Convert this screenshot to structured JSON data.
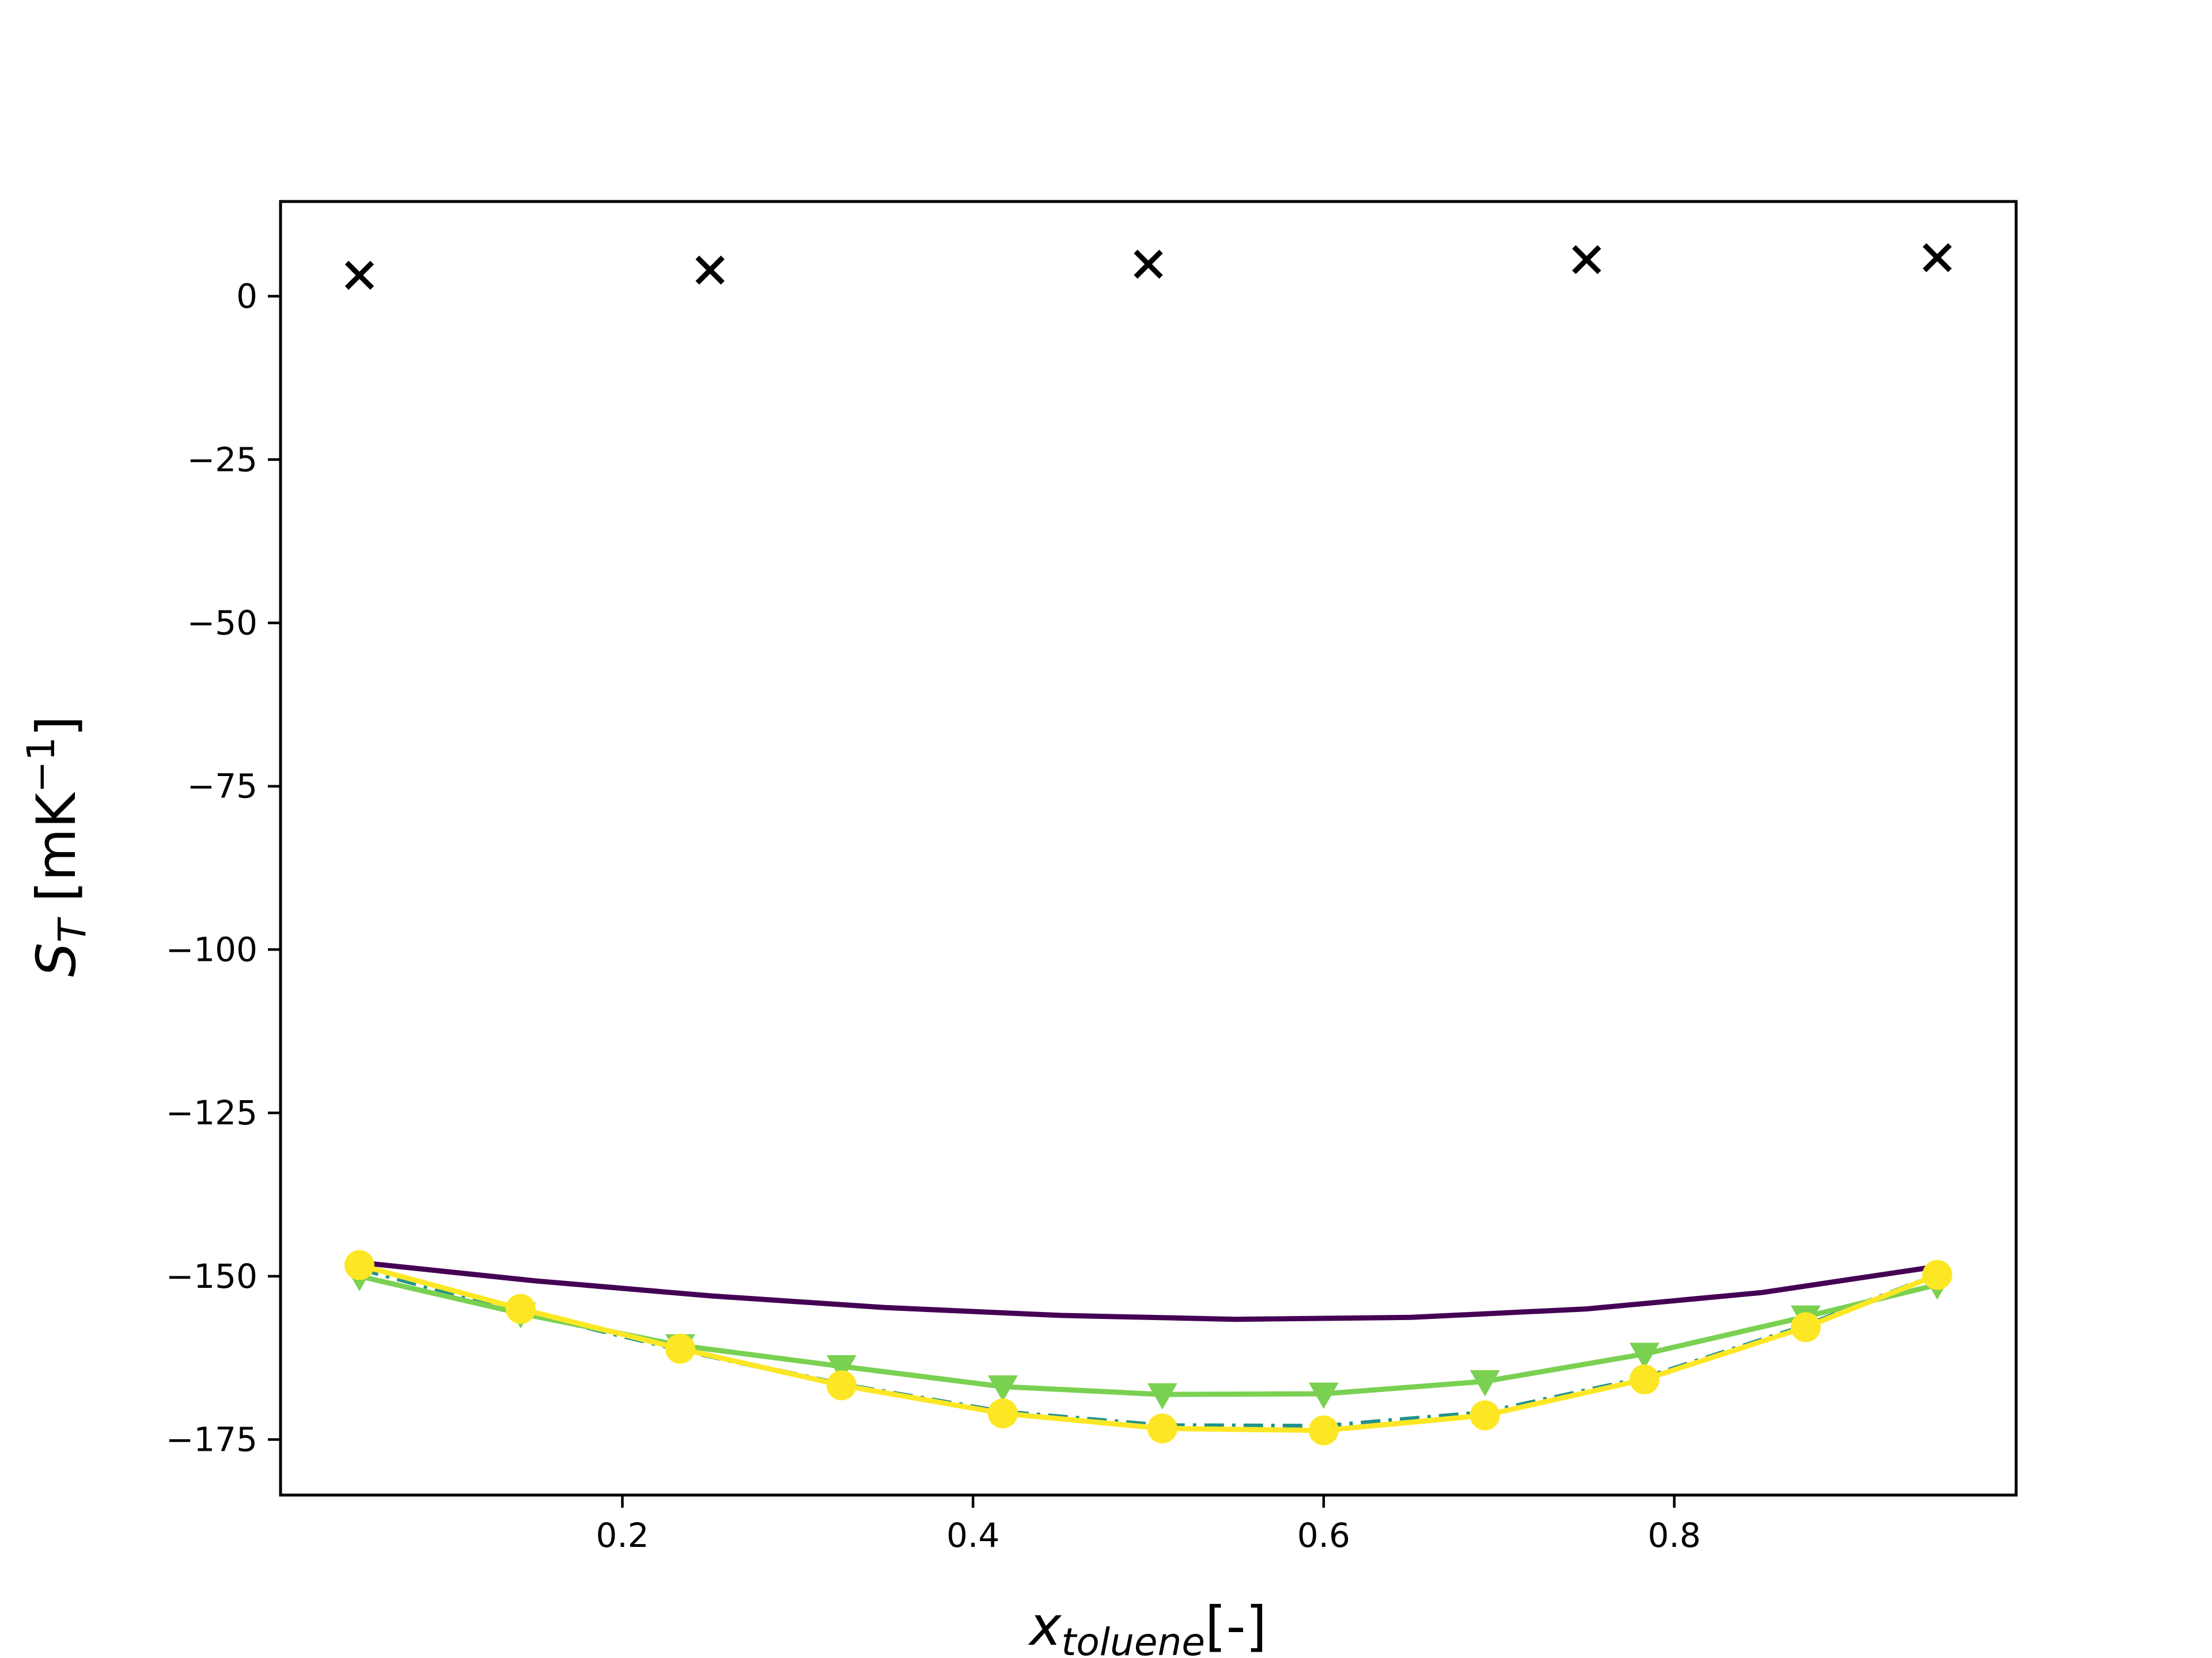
{
  "chart_data": {
    "type": "line",
    "title": "",
    "xlabel": {
      "main": "x",
      "sub": "toluene",
      "suffix": "[-]"
    },
    "ylabel": {
      "main": "S",
      "sub": "T",
      "unit_open": " [mK",
      "unit_sup": "−1",
      "unit_close": "]"
    },
    "xlim": [
      0.005,
      0.995
    ],
    "ylim": [
      -183.5,
      14.5
    ],
    "x_ticks": [
      0.2,
      0.4,
      0.6,
      0.8
    ],
    "x_tick_labels": [
      "0.2",
      "0.4",
      "0.6",
      "0.8"
    ],
    "y_ticks": [
      0,
      -25,
      -50,
      -75,
      -100,
      -125,
      -150,
      -175
    ],
    "y_tick_labels": [
      "0",
      "−25",
      "−50",
      "−75",
      "−100",
      "−125",
      "−150",
      "−175"
    ],
    "grid": false,
    "legend": "none",
    "series": [
      {
        "style": "line",
        "color": "#440154",
        "points": [
          [
            0.05,
            -147.9
          ],
          [
            0.15,
            -150.7
          ],
          [
            0.25,
            -153.0
          ],
          [
            0.35,
            -154.8
          ],
          [
            0.45,
            -156.0
          ],
          [
            0.55,
            -156.6
          ],
          [
            0.65,
            -156.3
          ],
          [
            0.75,
            -155.0
          ],
          [
            0.85,
            -152.5
          ],
          [
            0.95,
            -148.5
          ]
        ]
      },
      {
        "style": "dashdot",
        "color": "#21918c",
        "points": [
          [
            0.05,
            -148.8
          ],
          [
            0.142,
            -155.4
          ],
          [
            0.233,
            -161.2
          ],
          [
            0.325,
            -166.6
          ],
          [
            0.417,
            -170.8
          ],
          [
            0.508,
            -172.9
          ],
          [
            0.6,
            -173.0
          ],
          [
            0.692,
            -170.9
          ],
          [
            0.783,
            -165.6
          ],
          [
            0.875,
            -157.6
          ],
          [
            0.95,
            -149.8
          ]
        ]
      },
      {
        "style": "line+triangle",
        "color": "#7ad151",
        "points": [
          [
            0.05,
            -150.0
          ],
          [
            0.142,
            -155.7
          ],
          [
            0.233,
            -160.6
          ],
          [
            0.325,
            -163.8
          ],
          [
            0.417,
            -166.9
          ],
          [
            0.508,
            -168.1
          ],
          [
            0.6,
            -168.0
          ],
          [
            0.692,
            -166.1
          ],
          [
            0.783,
            -161.9
          ],
          [
            0.875,
            -156.2
          ],
          [
            0.95,
            -151.3
          ]
        ]
      },
      {
        "style": "line+circle",
        "color": "#fde725",
        "points": [
          [
            0.05,
            -148.3
          ],
          [
            0.142,
            -155.0
          ],
          [
            0.233,
            -161.1
          ],
          [
            0.325,
            -166.7
          ],
          [
            0.417,
            -171.0
          ],
          [
            0.508,
            -173.3
          ],
          [
            0.6,
            -173.6
          ],
          [
            0.692,
            -171.3
          ],
          [
            0.783,
            -165.8
          ],
          [
            0.875,
            -157.8
          ],
          [
            0.95,
            -149.8
          ]
        ]
      },
      {
        "style": "x-marker",
        "color": "#000000",
        "points": [
          [
            0.05,
            3.2
          ],
          [
            0.25,
            4.0
          ],
          [
            0.5,
            4.9
          ],
          [
            0.75,
            5.6
          ],
          [
            0.95,
            5.9
          ]
        ]
      }
    ]
  }
}
